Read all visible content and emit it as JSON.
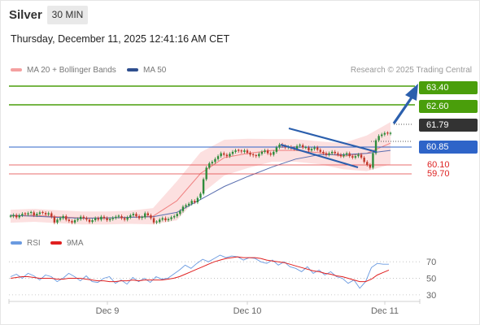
{
  "header": {
    "symbol": "Silver",
    "timeframe": "30 MIN",
    "datetime": "Thursday, December 11, 2025 12:41:16 AM CET",
    "credit": "Research © 2025 Trading Central"
  },
  "legend": {
    "ma20": "MA 20 + Bollinger Bands",
    "ma50": "MA 50",
    "rsi": "RSI",
    "ma9": "9MA"
  },
  "colors": {
    "candle_up": "#2e8b3a",
    "candle_down": "#c0392b",
    "bollinger_fill": "#fbdada",
    "ma20": "#f08080",
    "ma50": "#5a6fb0",
    "target_green": "#4a9e0b",
    "last_price_tag": "#333333",
    "pivot_blue": "#2e64c8",
    "support_red": "#e23b3b",
    "arrow": "#2b5fad",
    "rsi_line": "#6a9ae0",
    "ma9_line": "#e02020"
  },
  "chart_data": [
    {
      "type": "candlestick",
      "title": "",
      "x_tick_labels": [
        "Dec 9",
        "Dec 10",
        "Dec 11"
      ],
      "ylim": [
        58.3,
        64.5
      ],
      "price_levels": [
        {
          "label": "63.40",
          "value": 63.4,
          "style": "target"
        },
        {
          "label": "62.60",
          "value": 62.6,
          "style": "target"
        },
        {
          "label": "61.79",
          "value": 61.79,
          "style": "last"
        },
        {
          "label": "60.85",
          "value": 60.85,
          "style": "pivot"
        },
        {
          "label": "60.10",
          "value": 60.1,
          "style": "support"
        },
        {
          "label": "59.70",
          "value": 59.7,
          "style": "support"
        }
      ],
      "close": [
        58.92,
        58.96,
        58.88,
        58.95,
        59.0,
        58.98,
        59.02,
        59.05,
        58.95,
        59.0,
        59.05,
        59.03,
        58.98,
        59.02,
        58.9,
        58.7,
        58.8,
        58.85,
        58.92,
        58.8,
        58.75,
        58.7,
        58.78,
        58.82,
        58.9,
        58.85,
        58.8,
        58.72,
        58.78,
        58.85,
        58.8,
        58.9,
        58.85,
        58.78,
        58.82,
        58.86,
        58.9,
        58.92,
        58.85,
        58.8,
        58.88,
        58.95,
        59.0,
        58.92,
        58.85,
        58.88,
        59.02,
        58.95,
        58.85,
        58.7,
        58.72,
        58.8,
        58.85,
        58.78,
        58.82,
        58.88,
        58.92,
        59.0,
        59.1,
        59.25,
        59.3,
        59.35,
        59.45,
        59.4,
        59.55,
        59.7,
        60.2,
        60.6,
        60.75,
        60.8,
        60.9,
        61.0,
        61.1,
        61.05,
        61.0,
        61.08,
        61.15,
        61.2,
        61.18,
        61.15,
        61.2,
        61.12,
        61.05,
        61.02,
        61.0,
        61.08,
        61.15,
        61.2,
        61.1,
        61.05,
        61.15,
        61.3,
        61.4,
        61.35,
        61.3,
        61.32,
        61.28,
        61.25,
        61.35,
        61.38,
        61.3,
        61.3,
        61.2,
        61.25,
        61.3,
        61.22,
        61.15,
        61.1,
        61.05,
        61.1,
        61.15,
        61.1,
        61.05,
        61.0,
        61.05,
        61.1,
        61.0,
        60.95,
        61.0,
        61.05,
        60.95,
        60.8,
        60.7,
        60.6,
        61.1,
        61.55,
        61.7,
        61.75,
        61.8,
        61.78,
        61.79
      ],
      "series": [
        {
          "name": "MA 20",
          "values_sampled": [
            58.92,
            58.95,
            58.9,
            58.86,
            58.86,
            58.88,
            58.92,
            59.45,
            60.4,
            60.95,
            61.1,
            61.2,
            61.2,
            61.12,
            61.0,
            61.1,
            61.45
          ]
        },
        {
          "name": "MA 50",
          "values_sampled": [
            58.95,
            58.92,
            58.88,
            58.85,
            58.86,
            58.88,
            58.9,
            59.05,
            59.5,
            59.95,
            60.3,
            60.62,
            60.9,
            61.05,
            61.05,
            61.1,
            61.2
          ]
        }
      ]
    },
    {
      "type": "line",
      "title": "",
      "ylim": [
        25,
        80
      ],
      "y_ticks": [
        30,
        50,
        70
      ],
      "series": [
        {
          "name": "RSI",
          "values": [
            52,
            55,
            50,
            56,
            53,
            48,
            54,
            52,
            46,
            50,
            56,
            52,
            47,
            53,
            46,
            45,
            50,
            52,
            44,
            48,
            43,
            51,
            46,
            50,
            45,
            52,
            49,
            50,
            55,
            60,
            66,
            62,
            68,
            73,
            70,
            74,
            78,
            75,
            77,
            76,
            72,
            75,
            74,
            70,
            68,
            72,
            66,
            70,
            64,
            62,
            58,
            64,
            56,
            60,
            54,
            58,
            52,
            50,
            44,
            48,
            38,
            46,
            63,
            68,
            67,
            67
          ]
        },
        {
          "name": "9MA",
          "values": [
            50,
            51,
            52,
            52,
            51,
            50,
            50,
            50,
            49,
            49,
            50,
            50,
            50,
            49,
            48,
            47,
            47,
            46,
            46,
            47,
            47,
            48,
            47,
            48,
            48,
            48,
            48,
            49,
            50,
            52,
            55,
            58,
            61,
            64,
            67,
            70,
            72,
            74,
            75,
            76,
            75,
            75,
            75,
            74,
            72,
            71,
            70,
            69,
            67,
            65,
            63,
            61,
            59,
            58,
            56,
            55,
            53,
            52,
            50,
            48,
            46,
            46,
            49,
            54,
            57,
            60
          ]
        }
      ]
    }
  ]
}
